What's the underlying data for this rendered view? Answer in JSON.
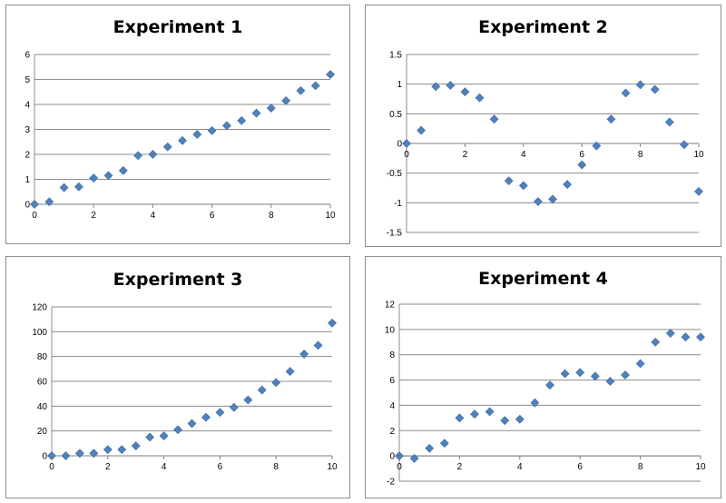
{
  "chart_data": [
    {
      "type": "scatter",
      "title": "Experiment 1",
      "xlabel": "",
      "ylabel": "",
      "xlim": [
        0,
        10
      ],
      "ylim": [
        0,
        6
      ],
      "xticks": [
        0,
        2,
        4,
        6,
        8,
        10
      ],
      "yticks": [
        0,
        1,
        2,
        3,
        4,
        5,
        6
      ],
      "grid": "horizontal",
      "legend": "none",
      "marker_color": "#4f81bd",
      "series": [
        {
          "x": [
            0,
            0.5,
            1,
            1.5,
            2,
            2.5,
            3,
            3.5,
            4,
            4.5,
            5,
            5.5,
            6,
            6.5,
            7,
            7.5,
            8,
            8.5,
            9,
            9.5,
            10
          ],
          "y": [
            0,
            0.1,
            0.67,
            0.7,
            1.05,
            1.15,
            1.35,
            1.95,
            2.0,
            2.3,
            2.55,
            2.8,
            2.95,
            3.15,
            3.35,
            3.65,
            3.85,
            4.15,
            4.55,
            4.75,
            5.2
          ]
        }
      ]
    },
    {
      "type": "scatter",
      "title": "Experiment 2",
      "xlabel": "",
      "ylabel": "",
      "xlim": [
        0,
        10
      ],
      "ylim": [
        -1.5,
        1.5
      ],
      "xticks": [
        0,
        2,
        4,
        6,
        8,
        10
      ],
      "yticks": [
        1.5,
        1,
        0.5,
        0,
        -0.5,
        -1,
        -1.5
      ],
      "grid": "horizontal",
      "legend": "none",
      "marker_color": "#4f81bd",
      "series": [
        {
          "x": [
            0,
            0.5,
            1,
            1.5,
            2,
            2.5,
            3,
            3.5,
            4,
            4.5,
            5,
            5.5,
            6,
            6.5,
            7,
            7.5,
            8,
            8.5,
            9,
            9.5,
            10
          ],
          "y": [
            0,
            0.22,
            0.96,
            0.98,
            0.87,
            0.77,
            0.41,
            -0.63,
            -0.71,
            -0.98,
            -0.94,
            -0.69,
            -0.36,
            -0.04,
            0.41,
            0.85,
            0.99,
            0.91,
            0.36,
            -0.02,
            -0.81
          ]
        }
      ]
    },
    {
      "type": "scatter",
      "title": "Experiment 3",
      "xlabel": "",
      "ylabel": "",
      "xlim": [
        0,
        10
      ],
      "ylim": [
        0,
        120
      ],
      "xticks": [
        0,
        2,
        4,
        6,
        8,
        10
      ],
      "yticks": [
        0,
        20,
        40,
        60,
        80,
        100,
        120
      ],
      "grid": "horizontal",
      "legend": "none",
      "marker_color": "#4f81bd",
      "series": [
        {
          "x": [
            0,
            0.5,
            1,
            1.5,
            2,
            2.5,
            3,
            3.5,
            4,
            4.5,
            5,
            5.5,
            6,
            6.5,
            7,
            7.5,
            8,
            8.5,
            9,
            9.5,
            10
          ],
          "y": [
            0,
            0,
            2,
            2,
            5,
            5,
            8,
            15,
            16,
            21,
            26,
            31,
            35,
            39,
            45,
            53,
            59,
            68,
            82,
            89,
            107
          ]
        }
      ]
    },
    {
      "type": "scatter",
      "title": "Experiment 4",
      "xlabel": "",
      "ylabel": "",
      "xlim": [
        0,
        10
      ],
      "ylim": [
        -2,
        12
      ],
      "xticks": [
        0,
        2,
        4,
        6,
        8,
        10
      ],
      "yticks": [
        12,
        10,
        8,
        6,
        4,
        2,
        0,
        -2
      ],
      "grid": "horizontal",
      "legend": "none",
      "marker_color": "#4f81bd",
      "series": [
        {
          "x": [
            0,
            0.5,
            1,
            1.5,
            2,
            2.5,
            3,
            3.5,
            4,
            4.5,
            5,
            5.5,
            6,
            6.5,
            7,
            7.5,
            8,
            8.5,
            9,
            9.5,
            10
          ],
          "y": [
            0,
            -0.2,
            0.6,
            1.0,
            3.0,
            3.3,
            3.5,
            2.8,
            2.9,
            4.2,
            5.6,
            6.5,
            6.6,
            6.3,
            5.9,
            6.4,
            7.3,
            9.0,
            9.7,
            9.4,
            9.4
          ]
        }
      ]
    }
  ]
}
